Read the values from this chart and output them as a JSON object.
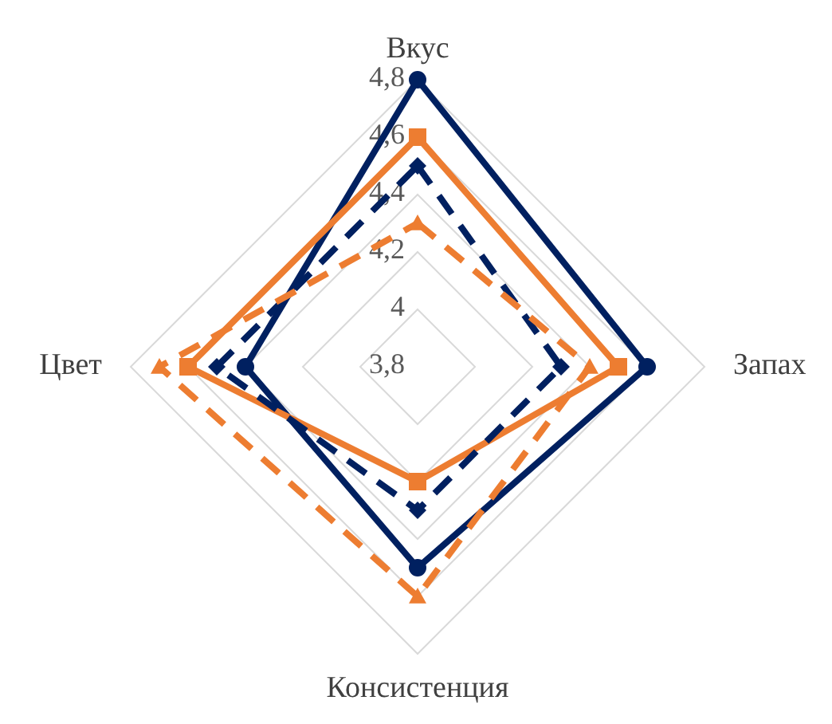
{
  "chart_data": {
    "type": "radar",
    "categories": [
      "Вкус",
      "Запах",
      "Консистенция",
      "Цвет"
    ],
    "ylim": [
      3.8,
      4.8
    ],
    "yticks": [
      {
        "value": 3.8,
        "label": "3,8"
      },
      4,
      {
        "value": 4.2,
        "label": "4,2"
      },
      {
        "value": 4.4,
        "label": "4,4"
      },
      {
        "value": 4.6,
        "label": "4,6"
      },
      {
        "value": 4.8,
        "label": "4,8"
      }
    ],
    "grid": true,
    "series": [
      {
        "color": "#002060",
        "values": [
          4.8,
          4.6,
          4.5,
          4.4
        ],
        "marker": "circle",
        "line_style": "solid"
      },
      {
        "color": "#ed7d31",
        "values": [
          4.6,
          4.5,
          4.2,
          4.6
        ],
        "marker": "square",
        "line_style": "solid"
      },
      {
        "color": "#002060",
        "values": [
          4.5,
          4.3,
          4.3,
          4.5
        ],
        "marker": "diamond",
        "line_style": "dashed"
      },
      {
        "color": "#ed7d31",
        "values": [
          4.3,
          4.4,
          4.6,
          4.7
        ],
        "marker": "triangle",
        "line_style": "dashed"
      }
    ]
  }
}
